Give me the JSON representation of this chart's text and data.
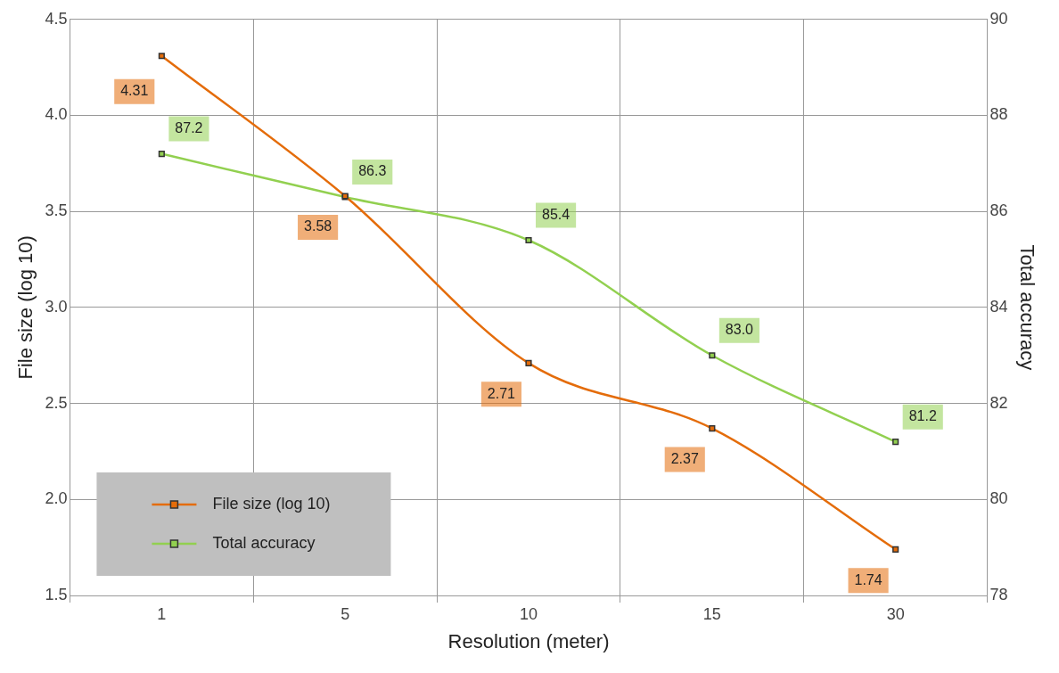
{
  "chart_data": {
    "type": "line",
    "xlabel": "Resolution (meter)",
    "ylabel": "File size (log 10)",
    "y2label": "Total accuracy",
    "categories": [
      "1",
      "5",
      "10",
      "15",
      "30"
    ],
    "series": [
      {
        "name": "File size (log 10)",
        "color": "#e46c0a",
        "values": [
          4.31,
          3.58,
          2.71,
          2.37,
          1.74
        ],
        "value_labels": [
          "4.31",
          "3.58",
          "2.71",
          "2.37",
          "1.74"
        ]
      },
      {
        "name": "Total accuracy",
        "color": "#92d050",
        "axis": "y2",
        "values": [
          87.2,
          86.3,
          85.4,
          83.0,
          81.2
        ],
        "value_labels": [
          "87.2",
          "86.3",
          "85.4",
          "83.0",
          "81.2"
        ]
      }
    ],
    "ylim": [
      1.5,
      4.5
    ],
    "yticks": [
      1.5,
      {
        "value": 2,
        "label": "2.0"
      },
      2.5,
      {
        "value": 3,
        "label": "3.0"
      },
      3.5,
      {
        "value": 4,
        "label": "4.0"
      },
      4.5
    ],
    "y2lim": [
      78,
      90
    ],
    "y2ticks": [
      78,
      80,
      82,
      84,
      86,
      88,
      90
    ],
    "grid": true,
    "legend": "bottom left",
    "marker": "square",
    "line_style": "solid"
  }
}
